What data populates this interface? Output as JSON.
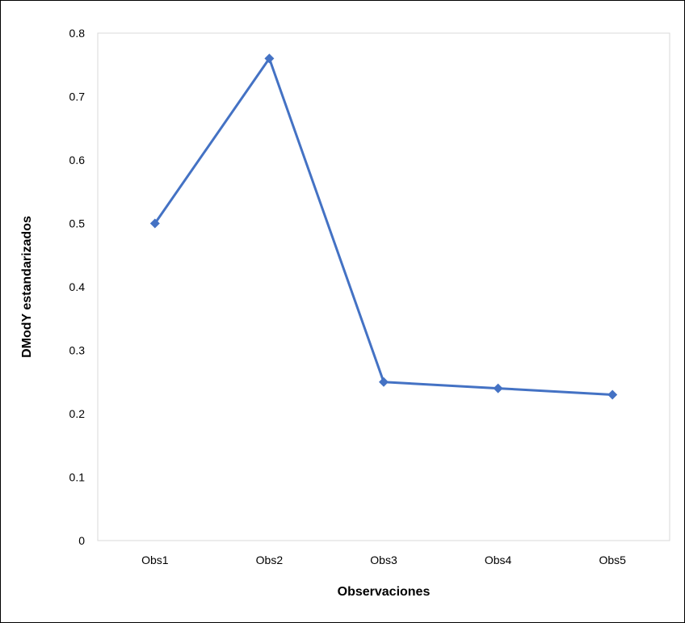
{
  "chart_data": {
    "type": "line",
    "title": "",
    "xlabel": "Observaciones",
    "ylabel": "DModY estandarizados",
    "categories": [
      "Obs1",
      "Obs2",
      "Obs3",
      "Obs4",
      "Obs5"
    ],
    "series": [
      {
        "values": [
          0.5,
          0.76,
          0.25,
          0.24,
          0.23
        ],
        "color": "#4472c4",
        "marker": "diamond"
      }
    ],
    "ylim": [
      0,
      0.8
    ],
    "yticks": [
      "0",
      "0.1",
      "0.2",
      "0.3",
      "0.4",
      "0.5",
      "0.6",
      "0.7",
      "0.8"
    ],
    "grid": false,
    "legend": "none"
  }
}
